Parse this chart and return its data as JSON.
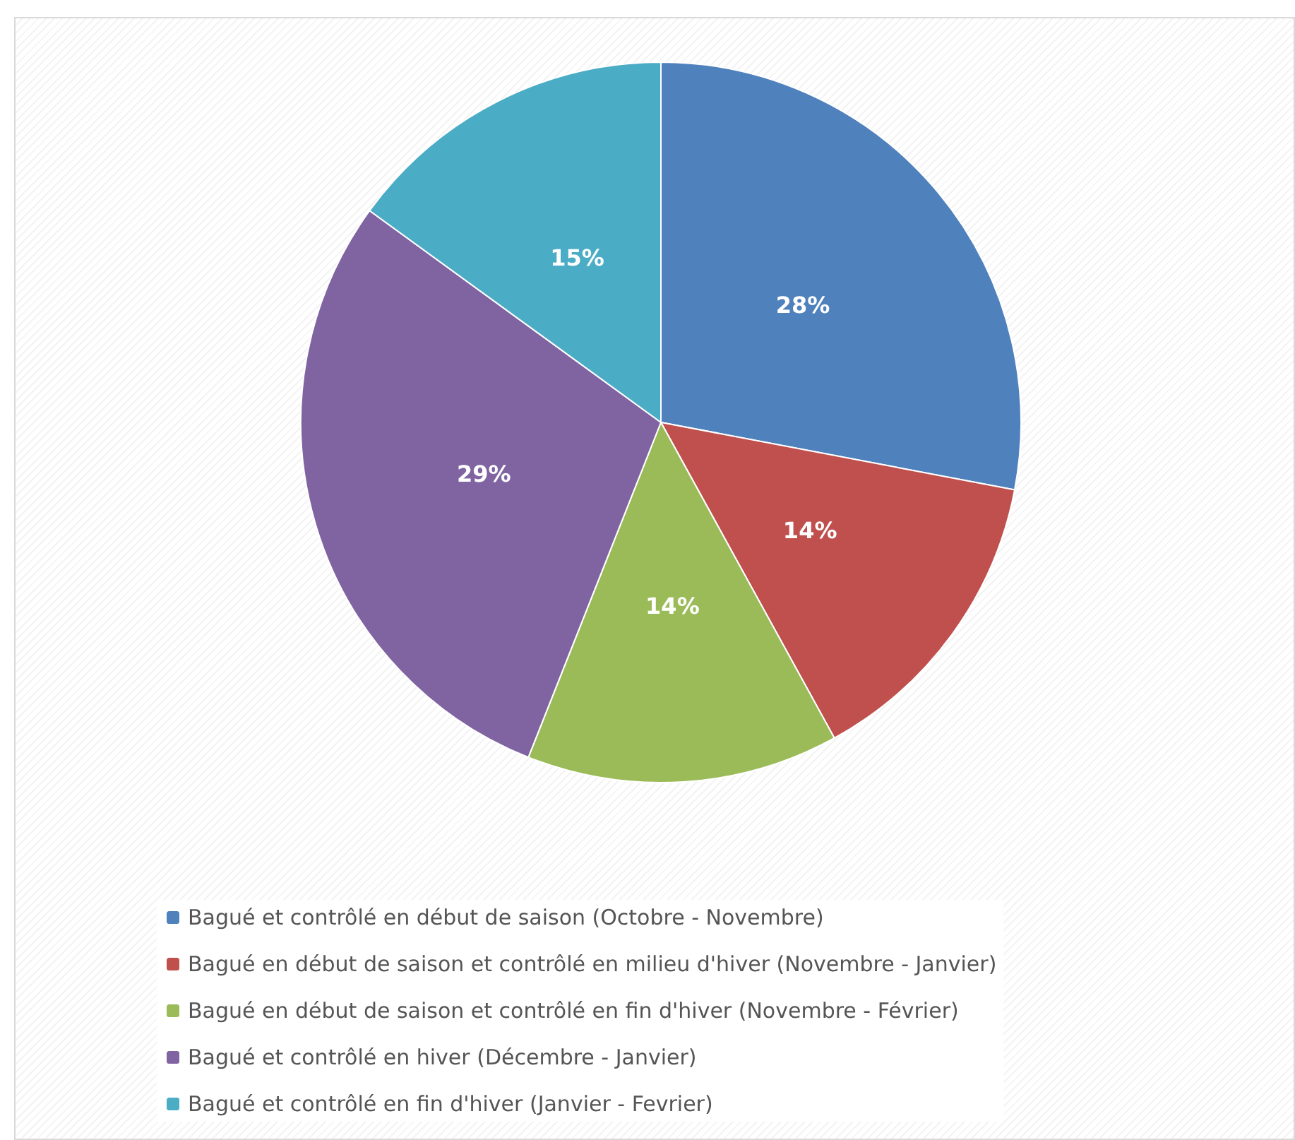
{
  "chart_data": {
    "type": "pie",
    "categories": [
      "Bagué et contrôlé en début de saison (Octobre - Novembre)",
      "Bagué en début de saison et contrôlé en milieu d'hiver (Novembre - Janvier)",
      "Bagué en début de saison et contrôlé en fin d'hiver (Novembre - Février)",
      "Bagué et contrôlé en hiver (Décembre - Janvier)",
      "Bagué et contrôlé en fin d'hiver (Janvier - Fevrier)"
    ],
    "values": [
      28,
      14,
      14,
      29,
      15
    ],
    "colors": [
      "#4f81bd",
      "#c0504d",
      "#9bbb59",
      "#8064a2",
      "#4bacc6"
    ],
    "value_labels": [
      "28%",
      "14%",
      "14%",
      "29%",
      "15%"
    ],
    "legend": "bottom"
  }
}
